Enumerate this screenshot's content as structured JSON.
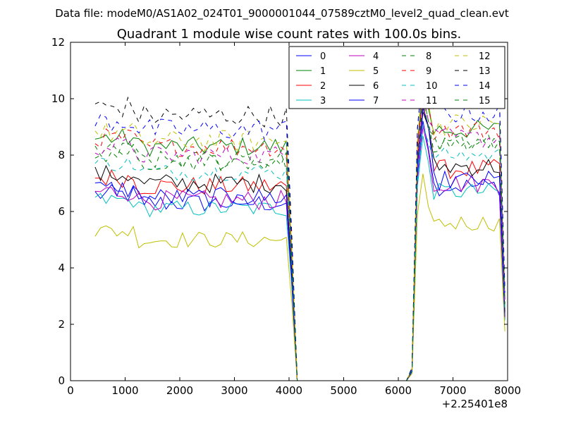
{
  "chart_data": {
    "type": "line",
    "suptitle": "Data file: modeM0/AS1A02_024T01_9000001044_07589cztM0_level2_quad_clean.evt",
    "title": "Quadrant 1 module wise count rates with 100.0s bins.",
    "xlabel": "",
    "ylabel": "",
    "x_offset_label": "+2.25401e8",
    "xlim": [
      0,
      8000
    ],
    "ylim": [
      0,
      12
    ],
    "x_ticks": [
      0,
      1000,
      2000,
      3000,
      4000,
      5000,
      6000,
      7000,
      8000
    ],
    "y_ticks": [
      0,
      2,
      4,
      6,
      8,
      10,
      12
    ],
    "x_tick_labels": [
      "0",
      "1000",
      "2000",
      "3000",
      "4000",
      "5000",
      "6000",
      "7000",
      "8000"
    ],
    "y_tick_labels": [
      "0",
      "2",
      "4",
      "6",
      "8",
      "10",
      "12"
    ],
    "grid": false,
    "legend_position": "top-right",
    "legend_columns": 4,
    "x": [
      450,
      550,
      650,
      750,
      850,
      950,
      1050,
      1150,
      1250,
      1350,
      1450,
      1550,
      1650,
      1750,
      1850,
      1950,
      2050,
      2150,
      2250,
      2350,
      2450,
      2550,
      2650,
      2750,
      2850,
      2950,
      3050,
      3150,
      3250,
      3350,
      3450,
      3550,
      3650,
      3750,
      3850,
      3950,
      4050,
      4150,
      4250,
      4350,
      4450,
      4550,
      4650,
      4750,
      4850,
      4950,
      5050,
      5150,
      5250,
      5350,
      5450,
      5550,
      5650,
      5750,
      5850,
      5950,
      6050,
      6150,
      6250,
      6350,
      6450,
      6550,
      6650,
      6750,
      6850,
      6950,
      7050,
      7150,
      7250,
      7350,
      7450,
      7550,
      7650,
      7750,
      7850,
      7950
    ],
    "series": [
      {
        "name": "0",
        "color": "#0000ff",
        "dash": "solid",
        "base": 6.3,
        "peak": 9.3,
        "amp": 0.35
      },
      {
        "name": "1",
        "color": "#008000",
        "dash": "solid",
        "base": 8.3,
        "peak": 10.5,
        "amp": 0.35
      },
      {
        "name": "2",
        "color": "#ff0000",
        "dash": "solid",
        "base": 6.9,
        "peak": 9.9,
        "amp": 0.35
      },
      {
        "name": "3",
        "color": "#00bfbf",
        "dash": "solid",
        "base": 6.1,
        "peak": 8.6,
        "amp": 0.3
      },
      {
        "name": "4",
        "color": "#bf00bf",
        "dash": "solid",
        "base": 6.4,
        "peak": 9.1,
        "amp": 0.35
      },
      {
        "name": "5",
        "color": "#bfbf00",
        "dash": "solid",
        "base": 5.0,
        "peak": 7.2,
        "amp": 0.3
      },
      {
        "name": "6",
        "color": "#000000",
        "dash": "solid",
        "base": 7.0,
        "peak": 9.6,
        "amp": 0.35
      },
      {
        "name": "7",
        "color": "#0000ff",
        "dash": "solid",
        "base": 6.5,
        "peak": 9.5,
        "amp": 0.35
      },
      {
        "name": "8",
        "color": "#008000",
        "dash": "dashed",
        "base": 7.8,
        "peak": 10.3,
        "amp": 0.35
      },
      {
        "name": "9",
        "color": "#ff0000",
        "dash": "dashed",
        "base": 8.3,
        "peak": 10.4,
        "amp": 0.35
      },
      {
        "name": "10",
        "color": "#00bfbf",
        "dash": "dashed",
        "base": 7.4,
        "peak": 9.0,
        "amp": 0.3
      },
      {
        "name": "11",
        "color": "#bf00bf",
        "dash": "dashed",
        "base": 8.0,
        "peak": 10.2,
        "amp": 0.35
      },
      {
        "name": "12",
        "color": "#bfbf00",
        "dash": "dashed",
        "base": 8.5,
        "peak": 10.7,
        "amp": 0.4
      },
      {
        "name": "13",
        "color": "#000000",
        "dash": "dashed",
        "base": 9.4,
        "peak": 11.0,
        "amp": 0.4
      },
      {
        "name": "14",
        "color": "#0000ff",
        "dash": "dashed",
        "base": 8.9,
        "peak": 10.9,
        "amp": 0.4
      },
      {
        "name": "15",
        "color": "#008000",
        "dash": "dashed",
        "base": 7.8,
        "peak": 10.0,
        "amp": 0.35
      }
    ]
  }
}
